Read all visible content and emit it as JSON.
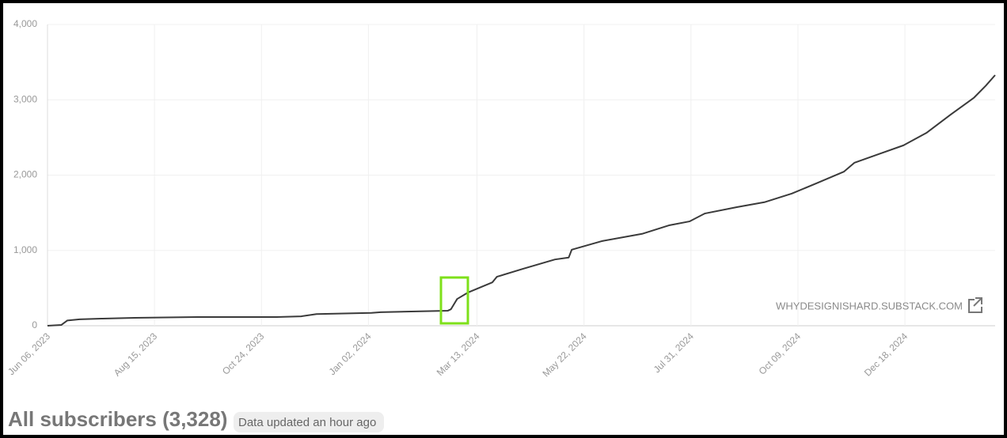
{
  "chart_data": {
    "type": "line",
    "title": "All subscribers (3,328)",
    "subtitle": "Data updated an hour ago",
    "watermark": "WHYDESIGNISHARD.SUBSTACK.COM",
    "x": [
      "2023-06-06",
      "2023-06-15",
      "2023-06-19",
      "2023-06-27",
      "2023-07-12",
      "2023-08-02",
      "2023-09-12",
      "2023-11-03",
      "2023-11-19",
      "2023-11-29",
      "2024-01-04",
      "2024-01-10",
      "2024-02-23",
      "2024-02-25",
      "2024-02-29",
      "2024-03-07",
      "2024-03-23",
      "2024-03-26",
      "2024-04-12",
      "2024-05-03",
      "2024-05-12",
      "2024-05-14",
      "2024-06-03",
      "2024-06-29",
      "2024-07-17",
      "2024-07-30",
      "2024-08-09",
      "2024-08-30",
      "2024-09-17",
      "2024-10-05",
      "2024-10-21",
      "2024-11-08",
      "2024-11-15",
      "2024-12-01",
      "2024-12-17",
      "2025-01-01",
      "2025-01-17",
      "2025-02-01",
      "2025-02-09",
      "2025-02-15"
    ],
    "series": [
      {
        "name": "All subscribers",
        "color": "#3a3a3a",
        "values": [
          0,
          10,
          70,
          85,
          95,
          105,
          115,
          115,
          125,
          155,
          170,
          180,
          200,
          220,
          355,
          440,
          575,
          650,
          755,
          880,
          905,
          1010,
          1125,
          1220,
          1335,
          1385,
          1490,
          1575,
          1640,
          1755,
          1890,
          2045,
          2165,
          2280,
          2395,
          2560,
          2805,
          3025,
          3190,
          3328
        ]
      }
    ],
    "xlim": [
      "2023-06-06",
      "2025-02-15"
    ],
    "xticks": [
      {
        "value": "2023-06-06",
        "label": "Jun 06, 2023"
      },
      {
        "value": "2023-08-15",
        "label": "Aug 15, 2023"
      },
      {
        "value": "2023-10-24",
        "label": "Oct 24, 2023"
      },
      {
        "value": "2024-01-02",
        "label": "Jan 02, 2024"
      },
      {
        "value": "2024-03-13",
        "label": "Mar 13, 2024"
      },
      {
        "value": "2024-05-22",
        "label": "May 22, 2024"
      },
      {
        "value": "2024-07-31",
        "label": "Jul 31, 2024"
      },
      {
        "value": "2024-10-09",
        "label": "Oct 09, 2024"
      },
      {
        "value": "2024-12-18",
        "label": "Dec 18, 2024"
      }
    ],
    "ylim": [
      0,
      4000
    ],
    "yticks": [
      0,
      {
        "value": 1000,
        "label": "1,000"
      },
      {
        "value": 2000,
        "label": "2,000"
      },
      {
        "value": 3000,
        "label": "3,000"
      },
      {
        "value": 4000,
        "label": "4,000"
      }
    ],
    "grid": true
  }
}
